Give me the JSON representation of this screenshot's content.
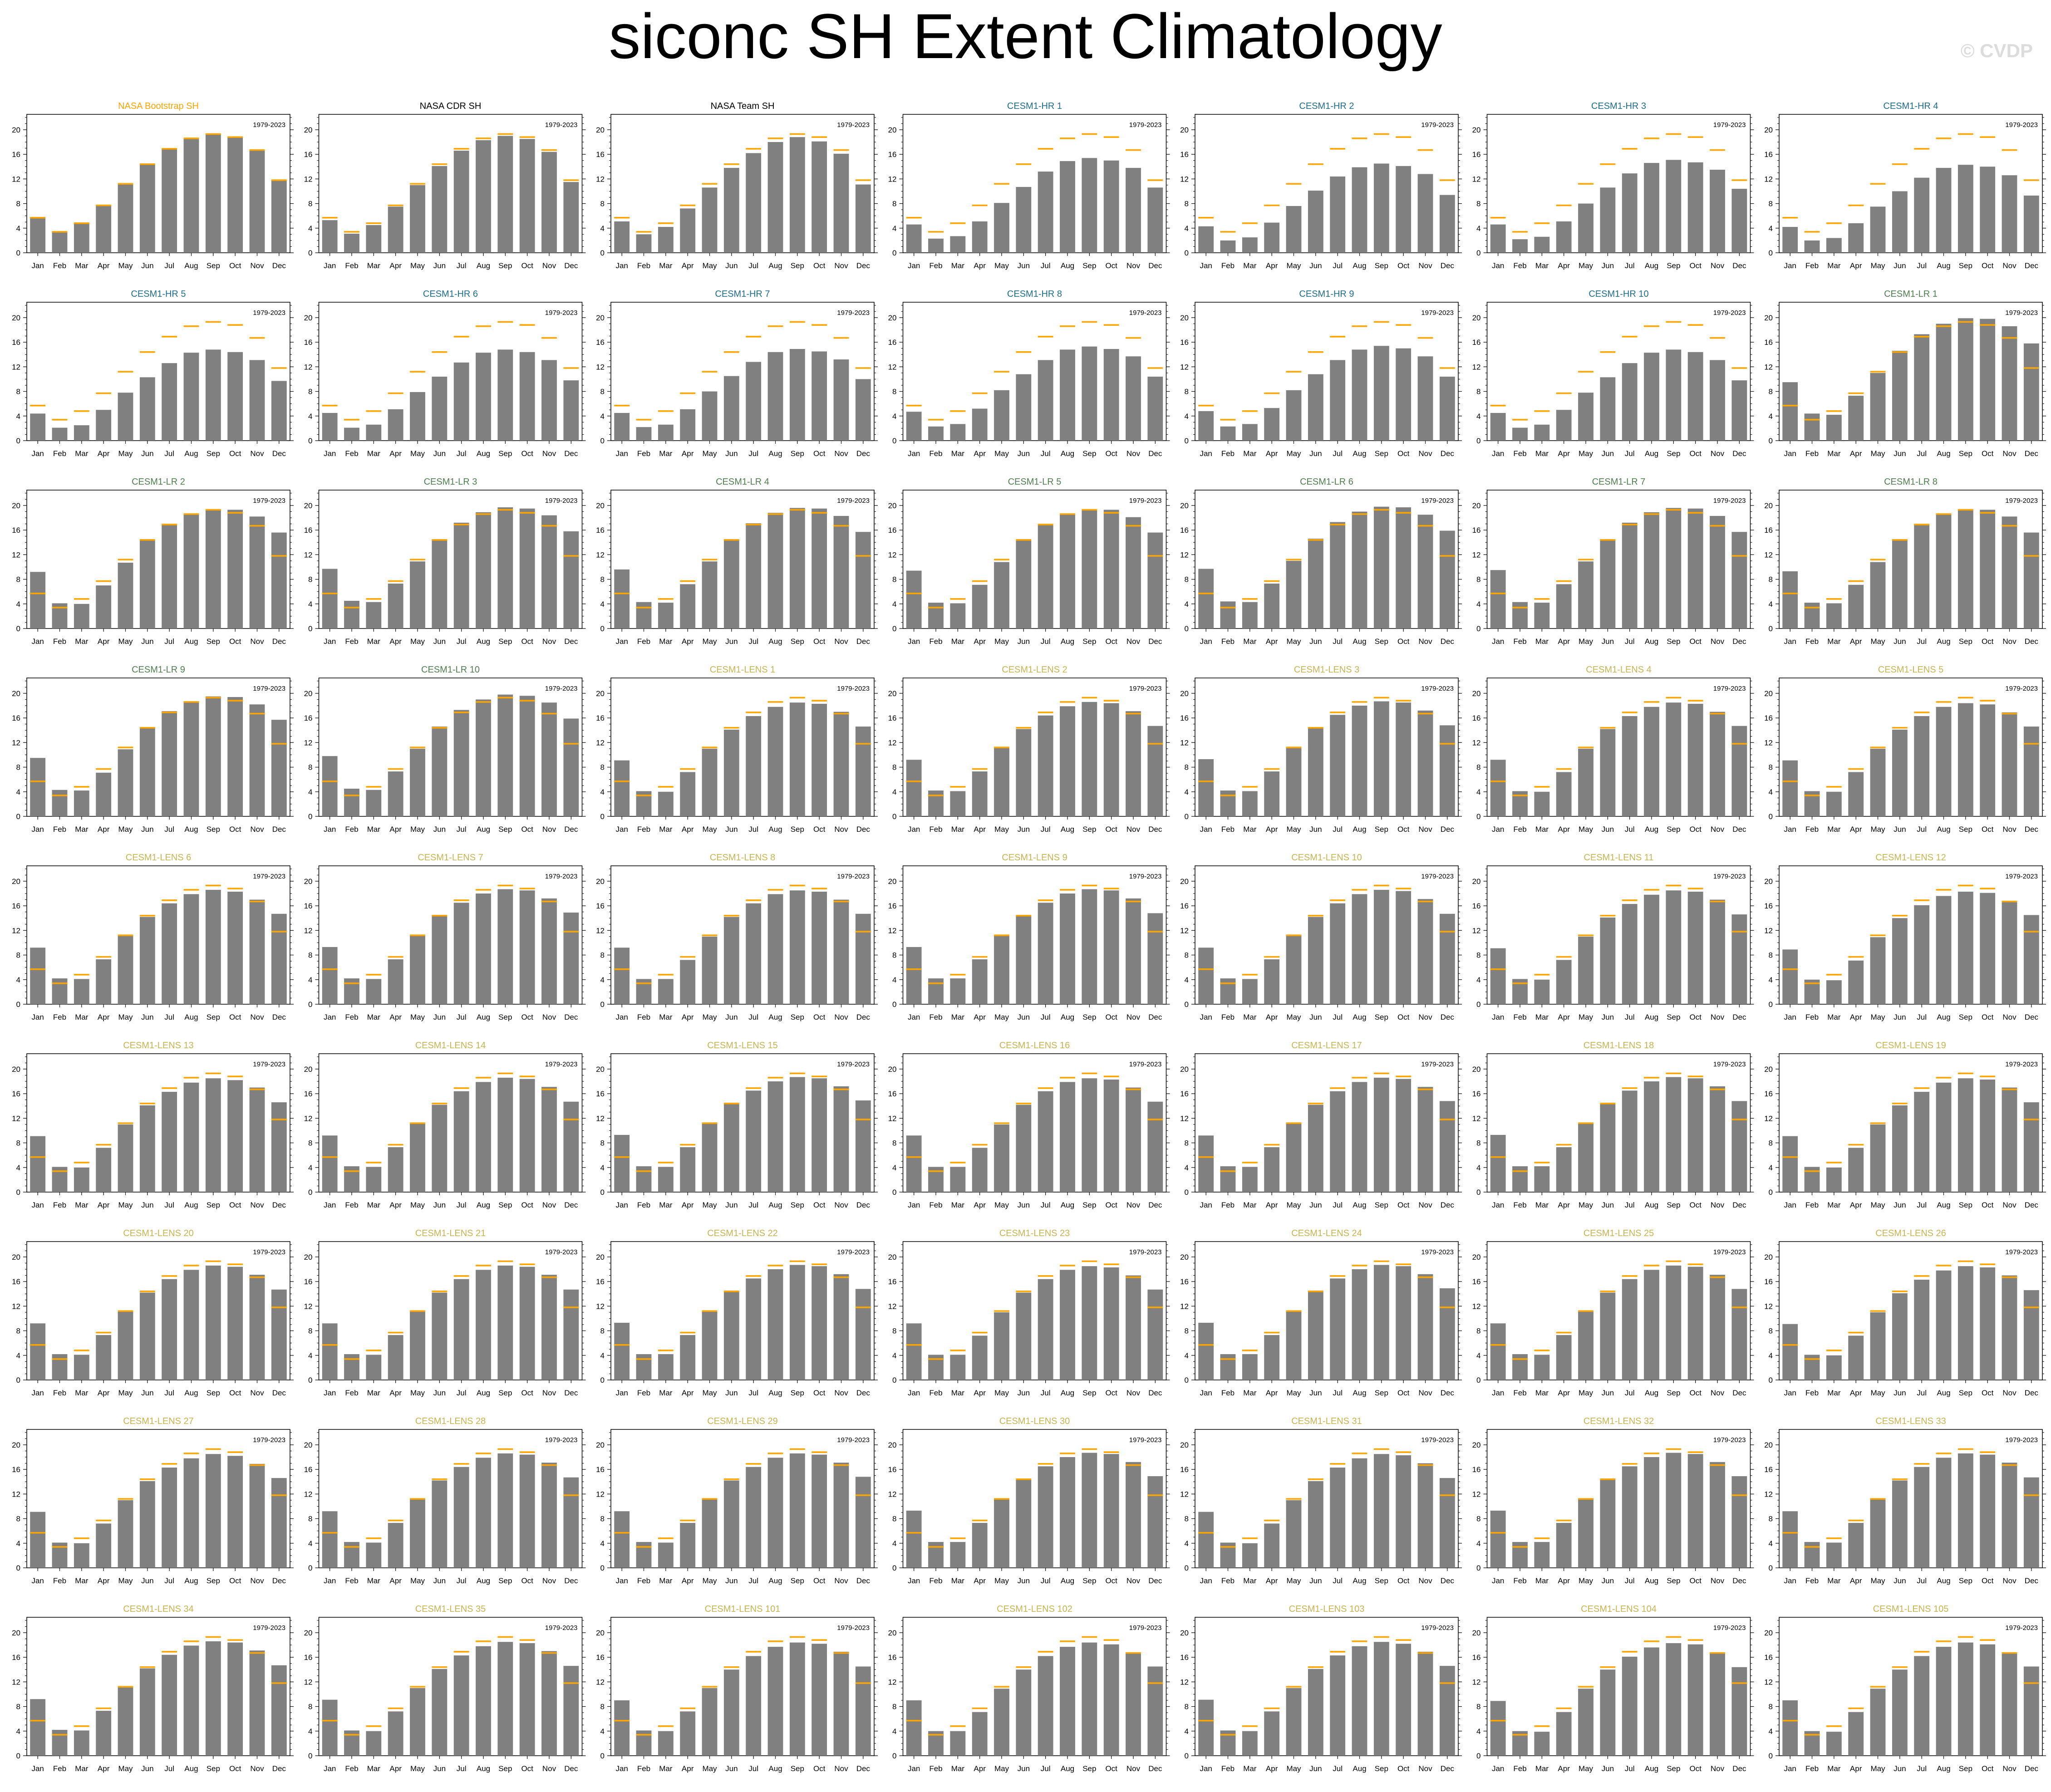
{
  "title": "siconc SH Extent Climatology",
  "watermark": "© CVDP",
  "colors": {
    "bar": "#808080",
    "obs_line": "#ffa500",
    "title_obs": "#ffa500",
    "title_black": "#000000",
    "title_hr": "#1f6e8c",
    "title_lr": "#4f7f4f",
    "title_lens": "#c8b450"
  },
  "chart_data": {
    "type": "bar",
    "layout": "9 rows x 7 panels",
    "categories": [
      "Jan",
      "Feb",
      "Mar",
      "Apr",
      "May",
      "Jun",
      "Jul",
      "Aug",
      "Sep",
      "Oct",
      "Nov",
      "Dec"
    ],
    "period_label": "1979-2023",
    "yticks": [
      0,
      4,
      8,
      12,
      16,
      20
    ],
    "ylim": [
      0,
      22.5
    ],
    "reference_series": {
      "name": "NASA Bootstrap SH",
      "values": [
        5.7,
        3.4,
        4.8,
        7.7,
        11.2,
        14.4,
        16.9,
        18.6,
        19.3,
        18.8,
        16.7,
        11.8
      ]
    },
    "panels": [
      {
        "title": "NASA Bootstrap SH",
        "group": "obs",
        "values": [
          5.7,
          3.4,
          4.8,
          7.7,
          11.2,
          14.4,
          16.9,
          18.6,
          19.3,
          18.8,
          16.7,
          11.8
        ]
      },
      {
        "title": "NASA CDR SH",
        "group": "black",
        "values": [
          5.3,
          3.1,
          4.5,
          7.5,
          11.0,
          14.1,
          16.6,
          18.3,
          19.0,
          18.5,
          16.4,
          11.5
        ]
      },
      {
        "title": "NASA Team SH",
        "group": "black",
        "values": [
          5.1,
          3.0,
          4.2,
          7.2,
          10.6,
          13.8,
          16.2,
          18.0,
          18.8,
          18.1,
          16.1,
          11.1
        ]
      },
      {
        "title": "CESM1-HR 1",
        "group": "hr",
        "values": [
          4.6,
          2.3,
          2.7,
          5.1,
          8.1,
          10.7,
          13.2,
          14.9,
          15.4,
          15.0,
          13.8,
          10.6
        ]
      },
      {
        "title": "CESM1-HR 2",
        "group": "hr",
        "values": [
          4.3,
          2.0,
          2.5,
          4.9,
          7.6,
          10.1,
          12.4,
          13.9,
          14.5,
          14.1,
          12.8,
          9.4
        ]
      },
      {
        "title": "CESM1-HR 3",
        "group": "hr",
        "values": [
          4.6,
          2.2,
          2.6,
          5.1,
          8.0,
          10.6,
          12.9,
          14.6,
          15.1,
          14.7,
          13.5,
          10.4
        ]
      },
      {
        "title": "CESM1-HR 4",
        "group": "hr",
        "values": [
          4.2,
          2.0,
          2.4,
          4.8,
          7.5,
          10.0,
          12.2,
          13.8,
          14.3,
          14.0,
          12.6,
          9.3
        ]
      },
      {
        "title": "CESM1-HR 5",
        "group": "hr",
        "values": [
          4.4,
          2.1,
          2.5,
          5.0,
          7.8,
          10.3,
          12.6,
          14.3,
          14.8,
          14.4,
          13.1,
          9.7
        ]
      },
      {
        "title": "CESM1-HR 6",
        "group": "hr",
        "values": [
          4.5,
          2.1,
          2.6,
          5.1,
          7.9,
          10.4,
          12.7,
          14.3,
          14.8,
          14.4,
          13.1,
          9.8
        ]
      },
      {
        "title": "CESM1-HR 7",
        "group": "hr",
        "values": [
          4.5,
          2.2,
          2.6,
          5.1,
          8.0,
          10.5,
          12.8,
          14.4,
          14.9,
          14.5,
          13.2,
          10.0
        ]
      },
      {
        "title": "CESM1-HR 8",
        "group": "hr",
        "values": [
          4.7,
          2.3,
          2.7,
          5.2,
          8.2,
          10.8,
          13.1,
          14.8,
          15.3,
          14.9,
          13.7,
          10.4
        ]
      },
      {
        "title": "CESM1-HR 9",
        "group": "hr",
        "values": [
          4.8,
          2.3,
          2.7,
          5.3,
          8.2,
          10.8,
          13.1,
          14.8,
          15.4,
          15.0,
          13.7,
          10.4
        ]
      },
      {
        "title": "CESM1-HR 10",
        "group": "hr",
        "values": [
          4.5,
          2.1,
          2.6,
          5.0,
          7.8,
          10.3,
          12.6,
          14.3,
          14.8,
          14.4,
          13.1,
          9.8
        ]
      },
      {
        "title": "CESM1-LR 1",
        "group": "lr",
        "values": [
          9.5,
          4.4,
          4.2,
          7.3,
          11.0,
          14.6,
          17.3,
          19.0,
          19.9,
          19.8,
          18.6,
          15.8
        ]
      },
      {
        "title": "CESM1-LR 2",
        "group": "lr",
        "values": [
          9.2,
          4.1,
          4.0,
          7.0,
          10.7,
          14.3,
          17.0,
          18.7,
          19.4,
          19.3,
          18.2,
          15.6
        ]
      },
      {
        "title": "CESM1-LR 3",
        "group": "lr",
        "values": [
          9.7,
          4.5,
          4.3,
          7.3,
          10.9,
          14.5,
          17.2,
          18.9,
          19.7,
          19.5,
          18.4,
          15.8
        ]
      },
      {
        "title": "CESM1-LR 4",
        "group": "lr",
        "values": [
          9.6,
          4.3,
          4.2,
          7.2,
          10.9,
          14.5,
          17.1,
          18.8,
          19.6,
          19.5,
          18.3,
          15.7
        ]
      },
      {
        "title": "CESM1-LR 5",
        "group": "lr",
        "values": [
          9.4,
          4.2,
          4.1,
          7.1,
          10.8,
          14.3,
          17.0,
          18.6,
          19.4,
          19.3,
          18.1,
          15.6
        ]
      },
      {
        "title": "CESM1-LR 6",
        "group": "lr",
        "values": [
          9.7,
          4.4,
          4.3,
          7.3,
          11.0,
          14.6,
          17.3,
          19.0,
          19.8,
          19.7,
          18.5,
          15.9
        ]
      },
      {
        "title": "CESM1-LR 7",
        "group": "lr",
        "values": [
          9.5,
          4.3,
          4.2,
          7.2,
          10.9,
          14.5,
          17.2,
          18.9,
          19.6,
          19.5,
          18.3,
          15.7
        ]
      },
      {
        "title": "CESM1-LR 8",
        "group": "lr",
        "values": [
          9.3,
          4.2,
          4.1,
          7.1,
          10.8,
          14.4,
          17.0,
          18.7,
          19.4,
          19.3,
          18.2,
          15.6
        ]
      },
      {
        "title": "CESM1-LR 9",
        "group": "lr",
        "values": [
          9.5,
          4.3,
          4.2,
          7.1,
          10.9,
          14.4,
          17.1,
          18.7,
          19.5,
          19.4,
          18.2,
          15.7
        ]
      },
      {
        "title": "CESM1-LR 10",
        "group": "lr",
        "values": [
          9.8,
          4.5,
          4.3,
          7.3,
          11.0,
          14.6,
          17.3,
          19.0,
          19.8,
          19.6,
          18.5,
          15.9
        ]
      },
      {
        "title": "CESM1-LENS 1",
        "group": "lens",
        "values": [
          9.1,
          4.1,
          4.0,
          7.2,
          11.0,
          14.1,
          16.3,
          17.8,
          18.5,
          18.3,
          17.0,
          14.6
        ]
      },
      {
        "title": "CESM1-LENS 2",
        "group": "lens",
        "values": [
          9.2,
          4.2,
          4.1,
          7.3,
          11.1,
          14.2,
          16.4,
          17.9,
          18.6,
          18.4,
          17.1,
          14.7
        ]
      },
      {
        "title": "CESM1-LENS 3",
        "group": "lens",
        "values": [
          9.3,
          4.2,
          4.1,
          7.3,
          11.1,
          14.3,
          16.5,
          18.0,
          18.7,
          18.5,
          17.2,
          14.8
        ]
      },
      {
        "title": "CESM1-LENS 4",
        "group": "lens",
        "values": [
          9.2,
          4.1,
          4.0,
          7.2,
          11.0,
          14.2,
          16.3,
          17.8,
          18.5,
          18.3,
          17.0,
          14.7
        ]
      },
      {
        "title": "CESM1-LENS 5",
        "group": "lens",
        "values": [
          9.1,
          4.1,
          4.0,
          7.2,
          11.0,
          14.1,
          16.3,
          17.8,
          18.4,
          18.2,
          16.9,
          14.6
        ]
      },
      {
        "title": "CESM1-LENS 6",
        "group": "lens",
        "values": [
          9.2,
          4.2,
          4.1,
          7.3,
          11.1,
          14.2,
          16.4,
          17.9,
          18.6,
          18.3,
          17.0,
          14.7
        ]
      },
      {
        "title": "CESM1-LENS 7",
        "group": "lens",
        "values": [
          9.3,
          4.2,
          4.1,
          7.3,
          11.2,
          14.3,
          16.5,
          18.0,
          18.7,
          18.5,
          17.2,
          14.9
        ]
      },
      {
        "title": "CESM1-LENS 8",
        "group": "lens",
        "values": [
          9.2,
          4.1,
          4.1,
          7.2,
          11.0,
          14.2,
          16.4,
          17.9,
          18.5,
          18.3,
          17.0,
          14.7
        ]
      },
      {
        "title": "CESM1-LENS 9",
        "group": "lens",
        "values": [
          9.3,
          4.2,
          4.2,
          7.3,
          11.1,
          14.3,
          16.5,
          18.0,
          18.7,
          18.5,
          17.2,
          14.8
        ]
      },
      {
        "title": "CESM1-LENS 10",
        "group": "lens",
        "values": [
          9.2,
          4.2,
          4.1,
          7.3,
          11.1,
          14.2,
          16.4,
          17.9,
          18.6,
          18.4,
          17.1,
          14.7
        ]
      },
      {
        "title": "CESM1-LENS 11",
        "group": "lens",
        "values": [
          9.1,
          4.1,
          4.0,
          7.2,
          11.0,
          14.1,
          16.3,
          17.8,
          18.5,
          18.3,
          17.0,
          14.6
        ]
      },
      {
        "title": "CESM1-LENS 12",
        "group": "lens",
        "values": [
          8.9,
          4.0,
          3.9,
          7.1,
          10.9,
          14.0,
          16.1,
          17.6,
          18.3,
          18.1,
          16.8,
          14.5
        ]
      },
      {
        "title": "CESM1-LENS 13",
        "group": "lens",
        "values": [
          9.1,
          4.1,
          4.0,
          7.2,
          11.0,
          14.1,
          16.3,
          17.8,
          18.5,
          18.2,
          17.0,
          14.6
        ]
      },
      {
        "title": "CESM1-LENS 14",
        "group": "lens",
        "values": [
          9.2,
          4.2,
          4.1,
          7.3,
          11.1,
          14.2,
          16.4,
          17.9,
          18.6,
          18.4,
          17.1,
          14.7
        ]
      },
      {
        "title": "CESM1-LENS 15",
        "group": "lens",
        "values": [
          9.3,
          4.2,
          4.1,
          7.3,
          11.2,
          14.3,
          16.5,
          18.0,
          18.7,
          18.5,
          17.2,
          14.9
        ]
      },
      {
        "title": "CESM1-LENS 16",
        "group": "lens",
        "values": [
          9.2,
          4.1,
          4.1,
          7.2,
          11.0,
          14.2,
          16.4,
          17.9,
          18.5,
          18.3,
          17.0,
          14.7
        ]
      },
      {
        "title": "CESM1-LENS 17",
        "group": "lens",
        "values": [
          9.2,
          4.2,
          4.1,
          7.3,
          11.1,
          14.2,
          16.4,
          17.9,
          18.6,
          18.4,
          17.1,
          14.8
        ]
      },
      {
        "title": "CESM1-LENS 18",
        "group": "lens",
        "values": [
          9.3,
          4.2,
          4.2,
          7.3,
          11.1,
          14.3,
          16.5,
          18.0,
          18.7,
          18.5,
          17.2,
          14.8
        ]
      },
      {
        "title": "CESM1-LENS 19",
        "group": "lens",
        "values": [
          9.1,
          4.1,
          4.0,
          7.2,
          11.0,
          14.1,
          16.3,
          17.8,
          18.5,
          18.3,
          17.0,
          14.6
        ]
      },
      {
        "title": "CESM1-LENS 20",
        "group": "lens",
        "values": [
          9.2,
          4.2,
          4.1,
          7.3,
          11.1,
          14.2,
          16.4,
          17.9,
          18.6,
          18.4,
          17.1,
          14.7
        ]
      },
      {
        "title": "CESM1-LENS 21",
        "group": "lens",
        "values": [
          9.2,
          4.2,
          4.1,
          7.3,
          11.1,
          14.2,
          16.4,
          17.9,
          18.6,
          18.4,
          17.1,
          14.7
        ]
      },
      {
        "title": "CESM1-LENS 22",
        "group": "lens",
        "values": [
          9.3,
          4.2,
          4.2,
          7.3,
          11.1,
          14.3,
          16.5,
          18.0,
          18.7,
          18.5,
          17.2,
          14.8
        ]
      },
      {
        "title": "CESM1-LENS 23",
        "group": "lens",
        "values": [
          9.2,
          4.1,
          4.1,
          7.2,
          11.0,
          14.2,
          16.4,
          17.9,
          18.5,
          18.3,
          17.0,
          14.7
        ]
      },
      {
        "title": "CESM1-LENS 24",
        "group": "lens",
        "values": [
          9.3,
          4.2,
          4.2,
          7.3,
          11.2,
          14.3,
          16.5,
          18.0,
          18.7,
          18.5,
          17.2,
          14.9
        ]
      },
      {
        "title": "CESM1-LENS 25",
        "group": "lens",
        "values": [
          9.2,
          4.2,
          4.1,
          7.3,
          11.1,
          14.2,
          16.4,
          17.9,
          18.6,
          18.4,
          17.1,
          14.8
        ]
      },
      {
        "title": "CESM1-LENS 26",
        "group": "lens",
        "values": [
          9.1,
          4.1,
          4.0,
          7.2,
          11.0,
          14.1,
          16.3,
          17.8,
          18.5,
          18.3,
          17.0,
          14.6
        ]
      },
      {
        "title": "CESM1-LENS 27",
        "group": "lens",
        "values": [
          9.1,
          4.1,
          4.0,
          7.2,
          11.0,
          14.1,
          16.3,
          17.8,
          18.5,
          18.2,
          16.9,
          14.6
        ]
      },
      {
        "title": "CESM1-LENS 28",
        "group": "lens",
        "values": [
          9.2,
          4.2,
          4.1,
          7.3,
          11.1,
          14.2,
          16.4,
          17.9,
          18.6,
          18.4,
          17.1,
          14.7
        ]
      },
      {
        "title": "CESM1-LENS 29",
        "group": "lens",
        "values": [
          9.2,
          4.2,
          4.1,
          7.3,
          11.1,
          14.2,
          16.4,
          17.9,
          18.6,
          18.4,
          17.1,
          14.8
        ]
      },
      {
        "title": "CESM1-LENS 30",
        "group": "lens",
        "values": [
          9.3,
          4.2,
          4.2,
          7.3,
          11.2,
          14.3,
          16.5,
          18.0,
          18.7,
          18.5,
          17.2,
          14.9
        ]
      },
      {
        "title": "CESM1-LENS 31",
        "group": "lens",
        "values": [
          9.1,
          4.1,
          4.0,
          7.2,
          11.0,
          14.1,
          16.3,
          17.8,
          18.5,
          18.3,
          17.0,
          14.6
        ]
      },
      {
        "title": "CESM1-LENS 32",
        "group": "lens",
        "values": [
          9.3,
          4.2,
          4.2,
          7.3,
          11.1,
          14.3,
          16.5,
          18.0,
          18.7,
          18.5,
          17.2,
          14.9
        ]
      },
      {
        "title": "CESM1-LENS 33",
        "group": "lens",
        "values": [
          9.2,
          4.2,
          4.1,
          7.3,
          11.1,
          14.2,
          16.4,
          17.9,
          18.6,
          18.4,
          17.1,
          14.7
        ]
      },
      {
        "title": "CESM1-LENS 34",
        "group": "lens",
        "values": [
          9.2,
          4.2,
          4.1,
          7.3,
          11.1,
          14.2,
          16.4,
          17.9,
          18.6,
          18.4,
          17.1,
          14.7
        ]
      },
      {
        "title": "CESM1-LENS 35",
        "group": "lens",
        "values": [
          9.1,
          4.1,
          4.0,
          7.2,
          11.0,
          14.1,
          16.3,
          17.8,
          18.5,
          18.3,
          17.0,
          14.6
        ]
      },
      {
        "title": "CESM1-LENS 101",
        "group": "lens",
        "values": [
          9.0,
          4.1,
          4.0,
          7.2,
          11.0,
          14.0,
          16.2,
          17.7,
          18.4,
          18.2,
          16.9,
          14.5
        ]
      },
      {
        "title": "CESM1-LENS 102",
        "group": "lens",
        "values": [
          9.0,
          4.0,
          4.0,
          7.1,
          10.9,
          14.0,
          16.2,
          17.7,
          18.4,
          18.1,
          16.8,
          14.5
        ]
      },
      {
        "title": "CESM1-LENS 103",
        "group": "lens",
        "values": [
          9.1,
          4.1,
          4.0,
          7.2,
          11.0,
          14.1,
          16.3,
          17.8,
          18.5,
          18.2,
          16.9,
          14.6
        ]
      },
      {
        "title": "CESM1-LENS 104",
        "group": "lens",
        "values": [
          8.9,
          4.0,
          3.9,
          7.1,
          10.9,
          14.0,
          16.1,
          17.6,
          18.3,
          18.1,
          16.8,
          14.4
        ]
      },
      {
        "title": "CESM1-LENS 105",
        "group": "lens",
        "values": [
          9.0,
          4.0,
          3.9,
          7.1,
          10.9,
          14.0,
          16.2,
          17.7,
          18.4,
          18.1,
          16.8,
          14.5
        ]
      }
    ]
  }
}
